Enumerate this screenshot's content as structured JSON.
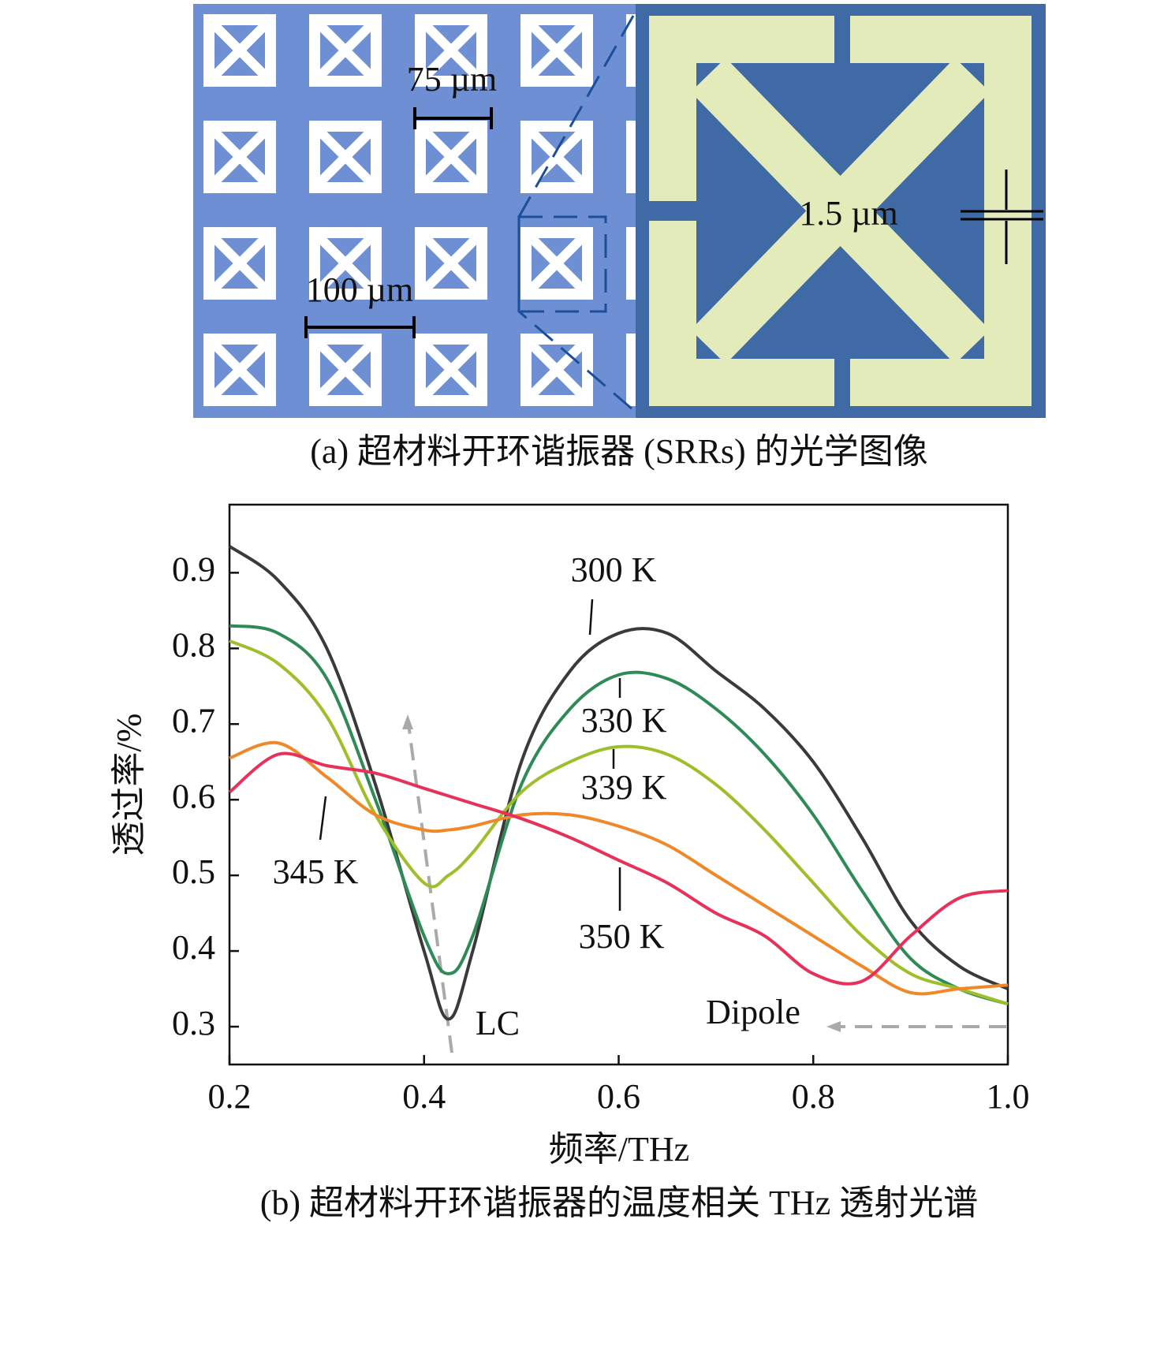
{
  "panel_a": {
    "label_pitch": "75 µm",
    "label_period": "100 µm",
    "label_gap": "1.5 µm",
    "caption": "(a) 超材料开环谐振器 (SRRs) 的光学图像"
  },
  "chart_data": {
    "type": "line",
    "x_label": "频率/THz",
    "y_label": "透过率/%",
    "caption": "(b) 超材料开环谐振器的温度相关 THz 透射光谱",
    "x": [
      0.2,
      0.25,
      0.3,
      0.35,
      0.4,
      0.425,
      0.45,
      0.5,
      0.55,
      0.6,
      0.65,
      0.7,
      0.75,
      0.8,
      0.85,
      0.9,
      0.95,
      1.0
    ],
    "series": [
      {
        "name": "300 K",
        "color": "#3a3a3a",
        "values": [
          0.935,
          0.89,
          0.8,
          0.62,
          0.4,
          0.31,
          0.4,
          0.65,
          0.77,
          0.82,
          0.82,
          0.77,
          0.72,
          0.65,
          0.55,
          0.44,
          0.38,
          0.35
        ]
      },
      {
        "name": "330 K",
        "color": "#2e8b57",
        "values": [
          0.83,
          0.82,
          0.76,
          0.6,
          0.42,
          0.37,
          0.42,
          0.62,
          0.72,
          0.765,
          0.76,
          0.72,
          0.66,
          0.58,
          0.48,
          0.39,
          0.35,
          0.33
        ]
      },
      {
        "name": "339 K",
        "color": "#9fbf2a",
        "values": [
          0.81,
          0.78,
          0.71,
          0.58,
          0.49,
          0.5,
          0.53,
          0.61,
          0.65,
          0.67,
          0.66,
          0.62,
          0.56,
          0.49,
          0.42,
          0.37,
          0.35,
          0.33
        ]
      },
      {
        "name": "345 K",
        "color": "#f0882a",
        "values": [
          0.655,
          0.675,
          0.63,
          0.58,
          0.56,
          0.56,
          0.565,
          0.58,
          0.58,
          0.565,
          0.54,
          0.5,
          0.46,
          0.42,
          0.38,
          0.345,
          0.35,
          0.355
        ]
      },
      {
        "name": "350 K",
        "color": "#e8305a",
        "values": [
          0.61,
          0.66,
          0.645,
          0.635,
          0.615,
          0.605,
          0.595,
          0.575,
          0.55,
          0.52,
          0.49,
          0.45,
          0.42,
          0.37,
          0.36,
          0.42,
          0.47,
          0.48
        ]
      }
    ],
    "annotations": [
      "LC",
      "Dipole"
    ],
    "xlim": [
      0.2,
      1.0
    ],
    "xticks": [
      0.2,
      0.4,
      0.6,
      0.8,
      {
        "value": 1,
        "label": "1.0"
      }
    ],
    "ylim": [
      0.25,
      0.99
    ],
    "yticks": [
      0.3,
      0.4,
      0.5,
      0.6,
      0.7,
      0.8,
      0.9
    ]
  }
}
